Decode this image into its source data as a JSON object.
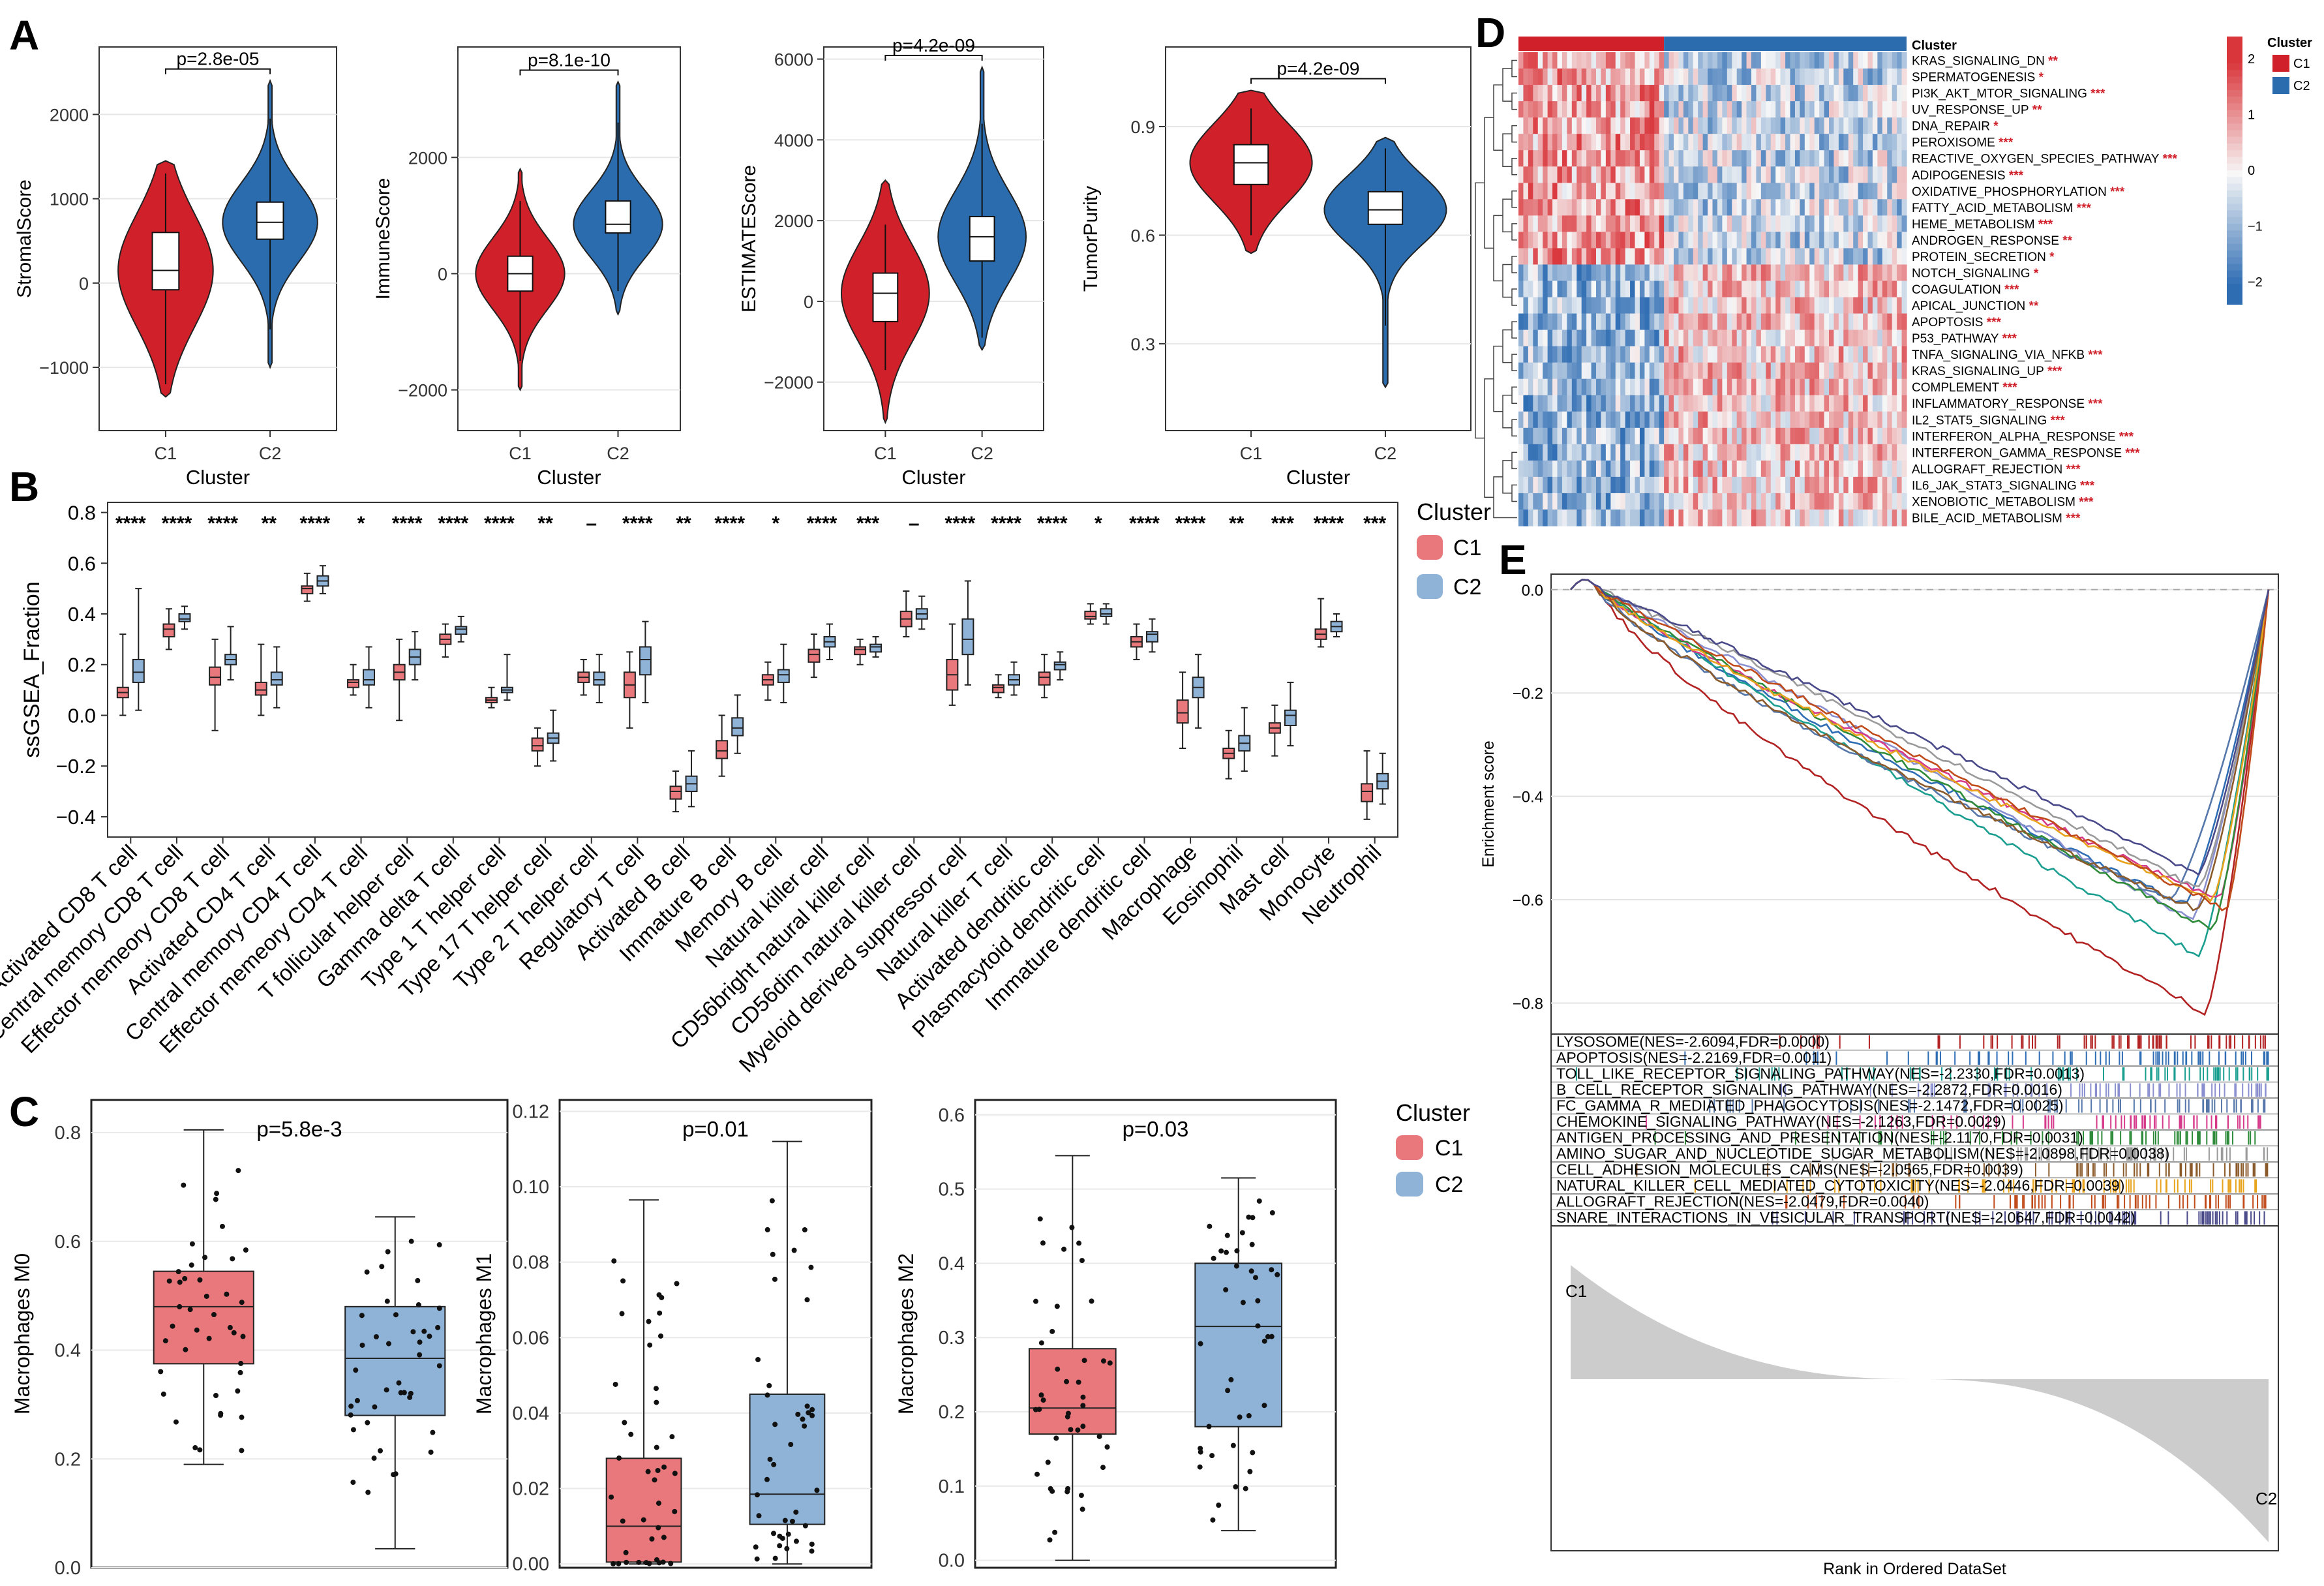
{
  "colors": {
    "c1_violin": "#d0202a",
    "c2_violin": "#2a6cae",
    "c1_box": "#e8787c",
    "c2_box": "#8fb3d6",
    "heat_low": "#2f6db3",
    "heat_mid": "#f7f7f7",
    "heat_high": "#d9363b",
    "gsea_fill": "#cccccc"
  },
  "panel_labels": {
    "a": "A",
    "b": "B",
    "c": "C",
    "d": "D",
    "e": "E"
  },
  "panelA": {
    "xlabel": "Cluster",
    "categories": [
      "C1",
      "C2"
    ],
    "plots": [
      {
        "ylabel": "StromalScore",
        "pvalue": "p=2.8e-05",
        "yticks": [
          -1000,
          0,
          1000,
          2000
        ],
        "ylim": [
          -1750,
          2800
        ],
        "c1": {
          "q1": -80,
          "median": 150,
          "q3": 600,
          "min": -1200,
          "max": 1300,
          "vmin": -1350,
          "vmax": 1450
        },
        "c2": {
          "q1": 520,
          "median": 720,
          "q3": 960,
          "min": -550,
          "max": 1950,
          "vmin": -1000,
          "vmax": 2400
        }
      },
      {
        "ylabel": "ImmuneScore",
        "pvalue": "p=8.1e-10",
        "yticks": [
          -2000,
          0,
          2000
        ],
        "ylim": [
          -2700,
          3900
        ],
        "c1": {
          "q1": -300,
          "median": 0,
          "q3": 300,
          "min": -1500,
          "max": 1250,
          "vmin": -2000,
          "vmax": 1800
        },
        "c2": {
          "q1": 700,
          "median": 850,
          "q3": 1250,
          "min": -300,
          "max": 2600,
          "vmin": -700,
          "vmax": 3300
        }
      },
      {
        "ylabel": "ESTIMATEScore",
        "pvalue": "p=4.2e-09",
        "yticks": [
          -2000,
          0,
          2000,
          4000,
          6000
        ],
        "ylim": [
          -3200,
          6300
        ],
        "c1": {
          "q1": -500,
          "median": 200,
          "q3": 700,
          "min": -1700,
          "max": 1900,
          "vmin": -3000,
          "vmax": 3000
        },
        "c2": {
          "q1": 1000,
          "median": 1600,
          "q3": 2100,
          "min": -900,
          "max": 4400,
          "vmin": -1200,
          "vmax": 5800
        }
      },
      {
        "ylabel": "TumorPurity",
        "pvalue": "p=4.2e-09",
        "yticks": [
          0.3,
          0.6,
          0.9
        ],
        "ylim": [
          0.06,
          1.12
        ],
        "c1": {
          "q1": 0.74,
          "median": 0.8,
          "q3": 0.85,
          "min": 0.6,
          "max": 0.95,
          "vmin": 0.55,
          "vmax": 1.0
        },
        "c2": {
          "q1": 0.63,
          "median": 0.67,
          "q3": 0.72,
          "min": 0.35,
          "max": 0.84,
          "vmin": 0.18,
          "vmax": 0.87
        }
      }
    ]
  },
  "panelB": {
    "ylabel": "ssGSEA_Fraction",
    "yticks": [
      -0.4,
      -0.2,
      0.0,
      0.2,
      0.4,
      0.6,
      0.8
    ],
    "ylim": [
      -0.48,
      0.84
    ],
    "legend_title": "Cluster",
    "legend": [
      "C1",
      "C2"
    ],
    "cells": [
      {
        "name": "Activated CD8 T cell",
        "sig": "****",
        "c1": [
          0.0,
          0.07,
          0.09,
          0.11,
          0.32
        ],
        "c2": [
          0.02,
          0.13,
          0.17,
          0.22,
          0.5
        ]
      },
      {
        "name": "Central memory CD8 T cell",
        "sig": "****",
        "c1": [
          0.26,
          0.31,
          0.34,
          0.36,
          0.42
        ],
        "c2": [
          0.34,
          0.37,
          0.38,
          0.4,
          0.43
        ]
      },
      {
        "name": "Effector memeory CD8 T cell",
        "sig": "****",
        "c1": [
          -0.06,
          0.12,
          0.15,
          0.19,
          0.3
        ],
        "c2": [
          0.14,
          0.2,
          0.22,
          0.24,
          0.35
        ]
      },
      {
        "name": "Activated CD4 T cell",
        "sig": "**",
        "c1": [
          0.0,
          0.08,
          0.1,
          0.13,
          0.28
        ],
        "c2": [
          0.03,
          0.12,
          0.14,
          0.17,
          0.27
        ]
      },
      {
        "name": "Central memory CD4 T cell",
        "sig": "****",
        "c1": [
          0.45,
          0.48,
          0.5,
          0.51,
          0.56
        ],
        "c2": [
          0.48,
          0.51,
          0.53,
          0.55,
          0.59
        ]
      },
      {
        "name": "Effector memeory CD4 T cell",
        "sig": "*",
        "c1": [
          0.08,
          0.11,
          0.13,
          0.14,
          0.2
        ],
        "c2": [
          0.03,
          0.12,
          0.14,
          0.18,
          0.27
        ]
      },
      {
        "name": "T follicular helper cell",
        "sig": "****",
        "c1": [
          -0.02,
          0.14,
          0.17,
          0.2,
          0.3
        ],
        "c2": [
          0.14,
          0.2,
          0.23,
          0.26,
          0.33
        ]
      },
      {
        "name": "Gamma delta T cell",
        "sig": "****",
        "c1": [
          0.23,
          0.28,
          0.3,
          0.32,
          0.36
        ],
        "c2": [
          0.29,
          0.32,
          0.34,
          0.35,
          0.39
        ]
      },
      {
        "name": "Type 1 T helper cell",
        "sig": "****",
        "c1": [
          0.03,
          0.05,
          0.06,
          0.07,
          0.11
        ],
        "c2": [
          0.06,
          0.09,
          0.1,
          0.11,
          0.24
        ]
      },
      {
        "name": "Type 17 T helper cell",
        "sig": "**",
        "c1": [
          -0.2,
          -0.14,
          -0.12,
          -0.09,
          -0.05
        ],
        "c2": [
          -0.18,
          -0.11,
          -0.09,
          -0.07,
          0.02
        ]
      },
      {
        "name": "Type 2 T helper cell",
        "sig": "–",
        "c1": [
          0.08,
          0.13,
          0.15,
          0.17,
          0.22
        ],
        "c2": [
          0.05,
          0.12,
          0.14,
          0.17,
          0.24
        ]
      },
      {
        "name": "Regulatory T cell",
        "sig": "****",
        "c1": [
          -0.05,
          0.07,
          0.12,
          0.17,
          0.25
        ],
        "c2": [
          0.05,
          0.16,
          0.22,
          0.27,
          0.37
        ]
      },
      {
        "name": "Activated B cell",
        "sig": "**",
        "c1": [
          -0.38,
          -0.33,
          -0.3,
          -0.28,
          -0.22
        ],
        "c2": [
          -0.36,
          -0.3,
          -0.27,
          -0.24,
          -0.14
        ]
      },
      {
        "name": "Immature B cell",
        "sig": "****",
        "c1": [
          -0.24,
          -0.17,
          -0.14,
          -0.1,
          0.0
        ],
        "c2": [
          -0.15,
          -0.08,
          -0.05,
          -0.01,
          0.08
        ]
      },
      {
        "name": "Memory B cell",
        "sig": "*",
        "c1": [
          0.06,
          0.12,
          0.14,
          0.16,
          0.21
        ],
        "c2": [
          0.05,
          0.13,
          0.16,
          0.18,
          0.28
        ]
      },
      {
        "name": "Natural killer cell",
        "sig": "****",
        "c1": [
          0.15,
          0.21,
          0.24,
          0.26,
          0.32
        ],
        "c2": [
          0.22,
          0.27,
          0.29,
          0.31,
          0.36
        ]
      },
      {
        "name": "CD56bright natural killer cell",
        "sig": "***",
        "c1": [
          0.2,
          0.24,
          0.26,
          0.27,
          0.3
        ],
        "c2": [
          0.23,
          0.25,
          0.27,
          0.28,
          0.31
        ]
      },
      {
        "name": "CD56dim natural killer cell",
        "sig": "–",
        "c1": [
          0.31,
          0.35,
          0.38,
          0.41,
          0.49
        ],
        "c2": [
          0.34,
          0.38,
          0.4,
          0.42,
          0.47
        ]
      },
      {
        "name": "Myeloid derived suppressor cell",
        "sig": "****",
        "c1": [
          0.04,
          0.1,
          0.16,
          0.22,
          0.36
        ],
        "c2": [
          0.12,
          0.24,
          0.3,
          0.38,
          0.53
        ]
      },
      {
        "name": "Natural killer T cell",
        "sig": "****",
        "c1": [
          0.07,
          0.09,
          0.11,
          0.12,
          0.16
        ],
        "c2": [
          0.08,
          0.12,
          0.14,
          0.16,
          0.21
        ]
      },
      {
        "name": "Activated dendritic cell",
        "sig": "****",
        "c1": [
          0.07,
          0.12,
          0.15,
          0.17,
          0.24
        ],
        "c2": [
          0.14,
          0.18,
          0.2,
          0.21,
          0.25
        ]
      },
      {
        "name": "Plasmacytoid dendritic cell",
        "sig": "*",
        "c1": [
          0.36,
          0.38,
          0.39,
          0.41,
          0.44
        ],
        "c2": [
          0.36,
          0.39,
          0.4,
          0.42,
          0.44
        ]
      },
      {
        "name": "Immature dendritic cell",
        "sig": "****",
        "c1": [
          0.22,
          0.27,
          0.29,
          0.31,
          0.36
        ],
        "c2": [
          0.25,
          0.29,
          0.32,
          0.33,
          0.38
        ]
      },
      {
        "name": "Macrophage",
        "sig": "****",
        "c1": [
          -0.13,
          -0.03,
          0.01,
          0.06,
          0.17
        ],
        "c2": [
          -0.05,
          0.07,
          0.11,
          0.15,
          0.24
        ]
      },
      {
        "name": "Eosinophil",
        "sig": "**",
        "c1": [
          -0.25,
          -0.17,
          -0.15,
          -0.13,
          -0.06
        ],
        "c2": [
          -0.22,
          -0.14,
          -0.11,
          -0.08,
          0.03
        ]
      },
      {
        "name": "Mast cell",
        "sig": "***",
        "c1": [
          -0.16,
          -0.07,
          -0.05,
          -0.03,
          0.04
        ],
        "c2": [
          -0.12,
          -0.04,
          0.0,
          0.02,
          0.13
        ]
      },
      {
        "name": "Monocyte",
        "sig": "****",
        "c1": [
          0.27,
          0.3,
          0.32,
          0.34,
          0.46
        ],
        "c2": [
          0.31,
          0.33,
          0.35,
          0.37,
          0.4
        ]
      },
      {
        "name": "Neutrophil",
        "sig": "***",
        "c1": [
          -0.41,
          -0.34,
          -0.3,
          -0.27,
          -0.14
        ],
        "c2": [
          -0.35,
          -0.29,
          -0.26,
          -0.23,
          -0.15
        ]
      }
    ]
  },
  "panelC": {
    "legend_title": "Cluster",
    "legend": [
      "C1",
      "C2"
    ],
    "plots": [
      {
        "ylabel": "Macrophages M0",
        "pvalue": "p=5.8e-3",
        "yticks": [
          0.0,
          0.2,
          0.4,
          0.6,
          0.8
        ],
        "ylim": [
          0.0,
          0.86
        ],
        "c1": {
          "min": 0.19,
          "q1": 0.375,
          "median": 0.48,
          "q3": 0.545,
          "max": 0.805
        },
        "c2": {
          "min": 0.035,
          "q1": 0.28,
          "median": 0.385,
          "q3": 0.48,
          "max": 0.645
        }
      },
      {
        "ylabel": "Macrophages M1",
        "pvalue": "p=0.01",
        "yticks": [
          0.0,
          0.02,
          0.04,
          0.06,
          0.08,
          0.1,
          0.12
        ],
        "ylim": [
          -0.001,
          0.123
        ],
        "c1": {
          "min": 0.0,
          "q1": 0.0005,
          "median": 0.01,
          "q3": 0.028,
          "max": 0.0965
        },
        "c2": {
          "min": 0.0,
          "q1": 0.0105,
          "median": 0.0185,
          "q3": 0.045,
          "max": 0.112
        }
      },
      {
        "ylabel": "Macrophages M2",
        "pvalue": "p=0.03",
        "yticks": [
          0.0,
          0.1,
          0.2,
          0.3,
          0.4,
          0.5,
          0.6
        ],
        "ylim": [
          -0.01,
          0.62
        ],
        "c1": {
          "min": 0.0,
          "q1": 0.17,
          "median": 0.205,
          "q3": 0.285,
          "max": 0.545
        },
        "c2": {
          "min": 0.04,
          "q1": 0.18,
          "median": 0.315,
          "q3": 0.4,
          "max": 0.515
        }
      }
    ]
  },
  "panelD": {
    "annotation_label": "Cluster",
    "legend_title": "Cluster",
    "legend": [
      "C1",
      "C2"
    ],
    "scale_ticks": [
      "2",
      "1",
      "0",
      "−1",
      "−2"
    ],
    "pathways": [
      {
        "name": "KRAS_SIGNALING_DN",
        "sig": "**"
      },
      {
        "name": "SPERMATOGENESIS",
        "sig": "*"
      },
      {
        "name": "PI3K_AKT_MTOR_SIGNALING",
        "sig": "***"
      },
      {
        "name": "UV_RESPONSE_UP",
        "sig": "**"
      },
      {
        "name": "DNA_REPAIR",
        "sig": "*"
      },
      {
        "name": "PEROXISOME",
        "sig": "***"
      },
      {
        "name": "REACTIVE_OXYGEN_SPECIES_PATHWAY",
        "sig": "***"
      },
      {
        "name": "ADIPOGENESIS",
        "sig": "***"
      },
      {
        "name": "OXIDATIVE_PHOSPHORYLATION",
        "sig": "***"
      },
      {
        "name": "FATTY_ACID_METABOLISM",
        "sig": "***"
      },
      {
        "name": "HEME_METABOLISM",
        "sig": "***"
      },
      {
        "name": "ANDROGEN_RESPONSE",
        "sig": "**"
      },
      {
        "name": "PROTEIN_SECRETION",
        "sig": "*"
      },
      {
        "name": "NOTCH_SIGNALING",
        "sig": "*"
      },
      {
        "name": "COAGULATION",
        "sig": "***"
      },
      {
        "name": "APICAL_JUNCTION",
        "sig": "**"
      },
      {
        "name": "APOPTOSIS",
        "sig": "***"
      },
      {
        "name": "P53_PATHWAY",
        "sig": "***"
      },
      {
        "name": "TNFA_SIGNALING_VIA_NFKB",
        "sig": "***"
      },
      {
        "name": "KRAS_SIGNALING_UP",
        "sig": "***"
      },
      {
        "name": "COMPLEMENT",
        "sig": "***"
      },
      {
        "name": "INFLAMMATORY_RESPONSE",
        "sig": "***"
      },
      {
        "name": "IL2_STAT5_SIGNALING",
        "sig": "***"
      },
      {
        "name": "INTERFERON_ALPHA_RESPONSE",
        "sig": "***"
      },
      {
        "name": "INTERFERON_GAMMA_RESPONSE",
        "sig": "***"
      },
      {
        "name": "ALLOGRAFT_REJECTION",
        "sig": "***"
      },
      {
        "name": "IL6_JAK_STAT3_SIGNALING",
        "sig": "***"
      },
      {
        "name": "XENOBIOTIC_METABOLISM",
        "sig": "***"
      },
      {
        "name": "BILE_ACID_METABOLISM",
        "sig": "***"
      }
    ]
  },
  "panelE": {
    "ylabel": "Enrichment score",
    "xlabel": "Rank in Ordered DataSet",
    "yticks": [
      0.0,
      -0.2,
      -0.4,
      -0.6,
      -0.8
    ],
    "ylim": [
      -0.86,
      0.03
    ],
    "c1_label": "C1",
    "c2_label": "C2",
    "gene_sets": [
      {
        "label": "LYSOSOME(NES=-2.6094,FDR=0.0000)",
        "color": "#b22222",
        "min_es": -0.82,
        "min_rank": 0.91
      },
      {
        "label": "APOPTOSIS(NES=-2.2169,FDR=0.0011)",
        "color": "#2e6db4",
        "min_es": -0.61,
        "min_rank": 0.88
      },
      {
        "label": "TOLL_LIKE_RECEPTOR_SIGNALING_PATHWAY(NES=-2.2330,FDR=0.0013)",
        "color": "#1a9e8f",
        "min_es": -0.71,
        "min_rank": 0.9
      },
      {
        "label": "B_CELL_RECEPTOR_SIGNALING_PATHWAY(NES=-2.2872,FDR=0.0016)",
        "color": "#8a8fcf",
        "min_es": -0.64,
        "min_rank": 0.89
      },
      {
        "label": "FC_GAMMA_R_MEDIATED_PHAGOCYTOSIS(NES=-2.1472,FDR=0.0025)",
        "color": "#5577aa",
        "min_es": -0.6,
        "min_rank": 0.86
      },
      {
        "label": "CHEMOKINE_SIGNALING_PATHWAY(NES=-2.1263,FDR=0.0029)",
        "color": "#d63a8a",
        "min_es": -0.6,
        "min_rank": 0.93
      },
      {
        "label": "ANTIGEN_PROCESSING_AND_PRESENTATION(NES=-2.1170,FDR=0.0031)",
        "color": "#2e8b3a",
        "min_es": -0.66,
        "min_rank": 0.92
      },
      {
        "label": "AMINO_SUGAR_AND_NUCLEOTIDE_SUGAR_METABOLISM(NES=-2.0898,FDR=0.0038)",
        "color": "#9a9a9a",
        "min_es": -0.58,
        "min_rank": 0.9
      },
      {
        "label": "CELL_ADHESION_MOLECULES_CAMS(NES=-2.0565,FDR=0.0039)",
        "color": "#8b5a2b",
        "min_es": -0.62,
        "min_rank": 0.9
      },
      {
        "label": "NATURAL_KILLER_CELL_MEDIATED_CYTOTOXICITY(NES=-2.0446,FDR=0.0039)",
        "color": "#e8a31c",
        "min_es": -0.6,
        "min_rank": 0.92
      },
      {
        "label": "ALLOGRAFT_REJECTION(NES=-2.0479,FDR=0.0040)",
        "color": "#c04a1a",
        "min_es": -0.62,
        "min_rank": 0.94
      },
      {
        "label": "SNARE_INTERACTIONS_IN_VESICULAR_TRANSPORT(NES=-2.0647,FDR=0.0042)",
        "color": "#4a4a8a",
        "min_es": -0.55,
        "min_rank": 0.9
      }
    ]
  }
}
